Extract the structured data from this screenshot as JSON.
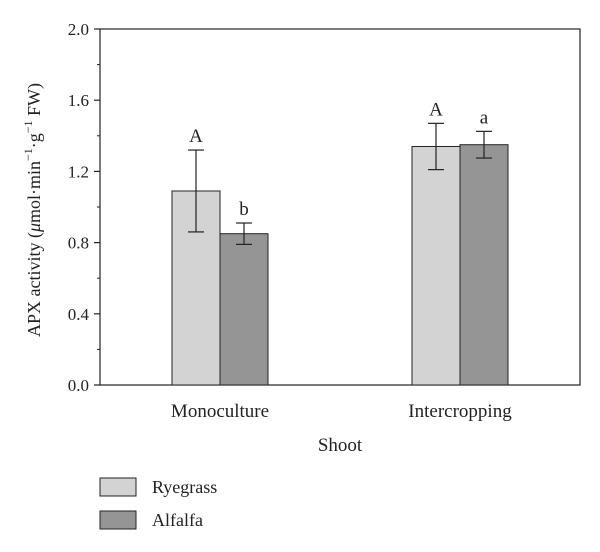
{
  "chart_data": {
    "type": "bar",
    "categories": [
      "Monoculture",
      "Intercropping"
    ],
    "series": [
      {
        "name": "Ryegrass",
        "color": "#d3d3d3",
        "values": [
          1.09,
          1.34
        ],
        "errors": [
          0.23,
          0.13
        ],
        "letters": [
          "A",
          "A"
        ]
      },
      {
        "name": "Alfalfa",
        "color": "#959595",
        "values": [
          0.85,
          1.35
        ],
        "errors": [
          0.06,
          0.075
        ],
        "letters": [
          "b",
          "a"
        ]
      }
    ],
    "ylim": [
      0,
      2.0
    ],
    "yticks": [
      "0.0",
      "0.4",
      "0.8",
      "1.2",
      "1.6",
      "2.0"
    ],
    "xlabel": "Shoot",
    "ylabel": {
      "main": "APX activity (",
      "mu": "μ",
      "mid": "mol·min",
      "sup1": "−1",
      "dot": "·g",
      "sup2": "−1",
      "tail": " FW)"
    },
    "legend_position": "bottom-left",
    "grid": false
  }
}
